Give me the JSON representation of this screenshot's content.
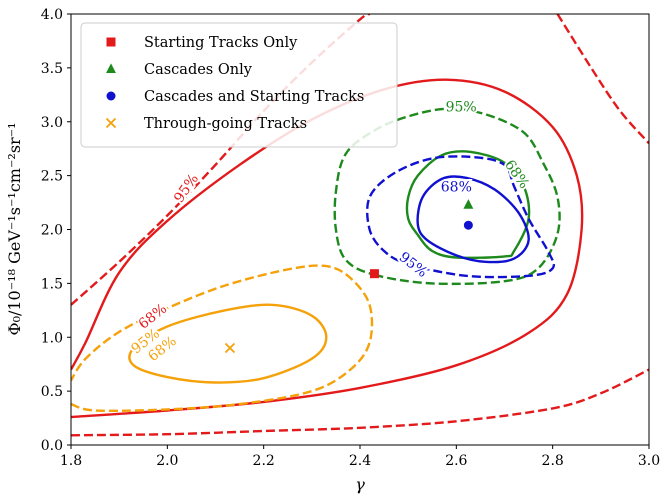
{
  "chart_data": {
    "type": "contour",
    "xlabel": "γ",
    "ylabel": "Φ₀/10⁻¹⁸ GeV⁻¹s⁻¹cm⁻²sr⁻¹",
    "xlim": [
      1.8,
      3.0
    ],
    "ylim": [
      0.0,
      4.0
    ],
    "xticks": [
      "1.8",
      "2.0",
      "2.2",
      "2.4",
      "2.6",
      "2.8",
      "3.0"
    ],
    "yticks": [
      "0.0",
      "0.5",
      "1.0",
      "1.5",
      "2.0",
      "2.5",
      "3.0",
      "3.5",
      "4.0"
    ],
    "grid": false,
    "legend_position": "top-left",
    "legend": [
      {
        "name": "Starting Tracks Only",
        "marker": "square",
        "color": "#e31a1c"
      },
      {
        "name": "Cascades Only",
        "marker": "triangle",
        "color": "#1e8a1e"
      },
      {
        "name": "Cascades and Starting Tracks",
        "marker": "circle",
        "color": "#1010d0"
      },
      {
        "name": "Through-going Tracks",
        "marker": "x",
        "color": "#f5a10a"
      }
    ],
    "best_fits": [
      {
        "name": "Starting Tracks Only",
        "x": 2.43,
        "y": 1.59
      },
      {
        "name": "Cascades Only",
        "x": 2.625,
        "y": 2.23
      },
      {
        "name": "Cascades and Starting Tracks",
        "x": 2.625,
        "y": 2.04
      },
      {
        "name": "Through-going Tracks",
        "x": 2.13,
        "y": 0.9
      }
    ],
    "contours": [
      {
        "series": "Starting Tracks Only",
        "level": "68%",
        "style": "solid",
        "color": "#e31a1c",
        "points": [
          [
            1.8,
            0.26
          ],
          [
            2.0,
            0.32
          ],
          [
            2.2,
            0.4
          ],
          [
            2.4,
            0.53
          ],
          [
            2.6,
            0.74
          ],
          [
            2.75,
            1.04
          ],
          [
            2.83,
            1.4
          ],
          [
            2.86,
            2.0
          ],
          [
            2.85,
            2.5
          ],
          [
            2.8,
            2.95
          ],
          [
            2.7,
            3.28
          ],
          [
            2.58,
            3.39
          ],
          [
            2.45,
            3.3
          ],
          [
            2.3,
            3.02
          ],
          [
            2.15,
            2.6
          ],
          [
            2.0,
            2.08
          ],
          [
            1.9,
            1.6
          ],
          [
            1.83,
            0.95
          ],
          [
            1.8,
            0.7
          ]
        ]
      },
      {
        "series": "Starting Tracks Only",
        "level": "95%",
        "style": "dashed",
        "color": "#e31a1c",
        "points": [
          [
            1.8,
            1.3
          ],
          [
            1.9,
            1.7
          ],
          [
            2.0,
            2.13
          ],
          [
            2.1,
            2.6
          ],
          [
            2.2,
            3.1
          ],
          [
            2.3,
            3.55
          ],
          [
            2.4,
            3.95
          ],
          [
            2.42,
            4.0
          ]
        ]
      },
      {
        "series": "Starting Tracks Only",
        "level": "95%",
        "style": "dashed",
        "color": "#e31a1c",
        "points": [
          [
            1.8,
            0.09
          ],
          [
            2.0,
            0.1
          ],
          [
            2.2,
            0.13
          ],
          [
            2.4,
            0.16
          ],
          [
            2.6,
            0.22
          ],
          [
            2.8,
            0.34
          ],
          [
            2.9,
            0.48
          ],
          [
            3.0,
            0.7
          ]
        ]
      },
      {
        "series": "Starting Tracks Only",
        "level": "95%",
        "style": "dashed",
        "color": "#e31a1c",
        "points": [
          [
            2.81,
            4.0
          ],
          [
            2.88,
            3.5
          ],
          [
            2.94,
            3.1
          ],
          [
            3.0,
            2.8
          ]
        ]
      },
      {
        "series": "Cascades Only",
        "level": "68%",
        "style": "solid",
        "color": "#1e8a1e",
        "points": [
          [
            2.6,
            1.74
          ],
          [
            2.7,
            1.75
          ],
          [
            2.72,
            1.8
          ],
          [
            2.75,
            2.1
          ],
          [
            2.74,
            2.4
          ],
          [
            2.7,
            2.62
          ],
          [
            2.63,
            2.72
          ],
          [
            2.57,
            2.69
          ],
          [
            2.52,
            2.5
          ],
          [
            2.5,
            2.3
          ],
          [
            2.5,
            2.1
          ],
          [
            2.52,
            1.95
          ],
          [
            2.55,
            1.8
          ]
        ]
      },
      {
        "series": "Cascades Only",
        "level": "95%",
        "style": "dashed",
        "color": "#1e8a1e",
        "points": [
          [
            2.43,
            1.58
          ],
          [
            2.55,
            1.5
          ],
          [
            2.7,
            1.52
          ],
          [
            2.77,
            1.64
          ],
          [
            2.81,
            1.96
          ],
          [
            2.81,
            2.3
          ],
          [
            2.78,
            2.62
          ],
          [
            2.74,
            2.9
          ],
          [
            2.66,
            3.07
          ],
          [
            2.58,
            3.12
          ],
          [
            2.5,
            3.05
          ],
          [
            2.43,
            2.92
          ],
          [
            2.37,
            2.7
          ],
          [
            2.35,
            2.35
          ],
          [
            2.35,
            2.0
          ],
          [
            2.37,
            1.72
          ]
        ]
      },
      {
        "series": "Cascades and Starting Tracks",
        "level": "68%",
        "style": "solid",
        "color": "#1010d0",
        "points": [
          [
            2.52,
            2.05
          ],
          [
            2.54,
            1.9
          ],
          [
            2.6,
            1.76
          ],
          [
            2.66,
            1.7
          ],
          [
            2.72,
            1.73
          ],
          [
            2.75,
            1.9
          ],
          [
            2.73,
            2.15
          ],
          [
            2.68,
            2.37
          ],
          [
            2.62,
            2.48
          ],
          [
            2.57,
            2.47
          ],
          [
            2.53,
            2.3
          ]
        ]
      },
      {
        "series": "Cascades and Starting Tracks",
        "level": "95%",
        "style": "dashed",
        "color": "#1010d0",
        "points": [
          [
            2.5,
            1.68
          ],
          [
            2.62,
            1.57
          ],
          [
            2.75,
            1.57
          ],
          [
            2.8,
            1.64
          ],
          [
            2.79,
            1.8
          ],
          [
            2.75,
            2.1
          ],
          [
            2.72,
            2.4
          ],
          [
            2.7,
            2.6
          ],
          [
            2.64,
            2.67
          ],
          [
            2.55,
            2.66
          ],
          [
            2.47,
            2.52
          ],
          [
            2.42,
            2.3
          ],
          [
            2.42,
            2.0
          ],
          [
            2.45,
            1.8
          ]
        ]
      },
      {
        "series": "Through-going Tracks",
        "level": "68%",
        "style": "solid",
        "color": "#f5a10a",
        "points": [
          [
            1.93,
            0.74
          ],
          [
            2.0,
            0.63
          ],
          [
            2.1,
            0.58
          ],
          [
            2.2,
            0.62
          ],
          [
            2.3,
            0.8
          ],
          [
            2.33,
            1.0
          ],
          [
            2.3,
            1.2
          ],
          [
            2.22,
            1.3
          ],
          [
            2.12,
            1.25
          ],
          [
            2.0,
            1.1
          ],
          [
            1.93,
            0.9
          ]
        ]
      },
      {
        "series": "Through-going Tracks",
        "level": "95%",
        "style": "dashed",
        "color": "#f5a10a",
        "points": [
          [
            1.8,
            0.38
          ],
          [
            1.85,
            0.32
          ],
          [
            2.0,
            0.33
          ],
          [
            2.15,
            0.38
          ],
          [
            2.3,
            0.5
          ],
          [
            2.38,
            0.7
          ],
          [
            2.42,
            0.95
          ],
          [
            2.42,
            1.3
          ],
          [
            2.38,
            1.55
          ],
          [
            2.33,
            1.66
          ],
          [
            2.25,
            1.63
          ],
          [
            2.12,
            1.48
          ],
          [
            2.0,
            1.27
          ],
          [
            1.9,
            1.05
          ],
          [
            1.83,
            0.8
          ],
          [
            1.8,
            0.6
          ]
        ]
      }
    ],
    "contour_labels": [
      {
        "text": "95%",
        "x": 2.04,
        "y": 2.38,
        "color": "#e31a1c",
        "rotate": -55
      },
      {
        "text": "68%",
        "x": 1.97,
        "y": 1.19,
        "color": "#e31a1c",
        "rotate": -38
      },
      {
        "text": "95%",
        "x": 1.955,
        "y": 0.96,
        "color": "#f5a10a",
        "rotate": -38
      },
      {
        "text": "68%",
        "x": 1.99,
        "y": 0.89,
        "color": "#f5a10a",
        "rotate": -38
      },
      {
        "text": "95%",
        "x": 2.61,
        "y": 3.13,
        "color": "#1e8a1e",
        "rotate": 0
      },
      {
        "text": "68%",
        "x": 2.725,
        "y": 2.51,
        "color": "#1e8a1e",
        "rotate": 55
      },
      {
        "text": "68%",
        "x": 2.6,
        "y": 2.39,
        "color": "#1010d0",
        "rotate": 0
      },
      {
        "text": "95%",
        "x": 2.51,
        "y": 1.67,
        "color": "#1010d0",
        "rotate": 38
      }
    ]
  }
}
